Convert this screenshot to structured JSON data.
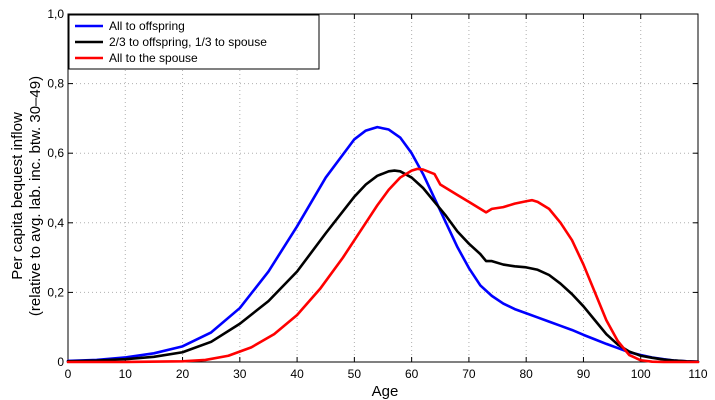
{
  "chart_data": {
    "type": "line",
    "title": "",
    "xlabel": "Age",
    "ylabel_lines": [
      "Per capita bequest inflow",
      "(relative to avg. lab. inc. btw. 30–49)"
    ],
    "xlim": [
      0,
      110
    ],
    "ylim": [
      0,
      1
    ],
    "xticks": [
      0,
      10,
      20,
      30,
      40,
      50,
      60,
      70,
      80,
      90,
      100,
      110
    ],
    "yticks": [
      0,
      0.2,
      0.4,
      0.6,
      0.8,
      1.0
    ],
    "ytick_labels": [
      "0",
      "0,2",
      "0,4",
      "0,6",
      "0,8",
      "1,0"
    ],
    "grid": true,
    "legend_position": "top-left",
    "series": [
      {
        "name": "All to offspring",
        "color": "#0000ff",
        "x": [
          0,
          5,
          10,
          15,
          20,
          25,
          30,
          35,
          40,
          45,
          50,
          52,
          54,
          56,
          58,
          60,
          62,
          64,
          66,
          68,
          70,
          72,
          74,
          76,
          78,
          80,
          82,
          84,
          86,
          88,
          90,
          92,
          94,
          96,
          98,
          100,
          102,
          104,
          106,
          108,
          110
        ],
        "y": [
          0.003,
          0.006,
          0.013,
          0.025,
          0.045,
          0.085,
          0.155,
          0.26,
          0.39,
          0.53,
          0.64,
          0.665,
          0.675,
          0.668,
          0.645,
          0.6,
          0.54,
          0.47,
          0.4,
          0.33,
          0.27,
          0.22,
          0.19,
          0.168,
          0.152,
          0.14,
          0.128,
          0.116,
          0.104,
          0.092,
          0.078,
          0.065,
          0.052,
          0.04,
          0.028,
          0.02,
          0.013,
          0.008,
          0.004,
          0.002,
          0.001
        ]
      },
      {
        "name": "2/3 to offspring, 1/3 to spouse",
        "color": "#000000",
        "x": [
          0,
          5,
          10,
          15,
          20,
          25,
          30,
          35,
          40,
          45,
          50,
          52,
          54,
          56,
          57,
          58,
          60,
          62,
          64,
          66,
          68,
          70,
          72,
          73,
          74,
          76,
          78,
          80,
          82,
          84,
          86,
          88,
          90,
          92,
          94,
          96,
          98,
          100,
          102,
          104,
          106,
          108,
          110
        ],
        "y": [
          0.002,
          0.004,
          0.008,
          0.015,
          0.028,
          0.058,
          0.11,
          0.175,
          0.26,
          0.37,
          0.475,
          0.51,
          0.535,
          0.548,
          0.55,
          0.548,
          0.53,
          0.5,
          0.46,
          0.42,
          0.375,
          0.34,
          0.31,
          0.29,
          0.29,
          0.28,
          0.275,
          0.272,
          0.265,
          0.25,
          0.225,
          0.195,
          0.16,
          0.12,
          0.08,
          0.05,
          0.03,
          0.018,
          0.012,
          0.007,
          0.004,
          0.002,
          0.001
        ]
      },
      {
        "name": "All to the spouse",
        "color": "#ff0000",
        "x": [
          0,
          10,
          20,
          24,
          28,
          32,
          36,
          40,
          44,
          48,
          52,
          54,
          56,
          58,
          60,
          61,
          62,
          64,
          65,
          66,
          68,
          70,
          72,
          73,
          74,
          76,
          78,
          80,
          81,
          82,
          84,
          86,
          88,
          90,
          92,
          94,
          96,
          98,
          100,
          102,
          104,
          106,
          108,
          110
        ],
        "y": [
          0,
          0,
          0.002,
          0.006,
          0.018,
          0.042,
          0.08,
          0.135,
          0.21,
          0.3,
          0.4,
          0.45,
          0.495,
          0.53,
          0.55,
          0.555,
          0.553,
          0.54,
          0.51,
          0.5,
          0.48,
          0.46,
          0.44,
          0.43,
          0.44,
          0.445,
          0.455,
          0.462,
          0.465,
          0.46,
          0.44,
          0.4,
          0.35,
          0.28,
          0.2,
          0.12,
          0.06,
          0.02,
          0.005,
          0.001,
          0,
          0,
          0,
          0
        ]
      }
    ]
  }
}
